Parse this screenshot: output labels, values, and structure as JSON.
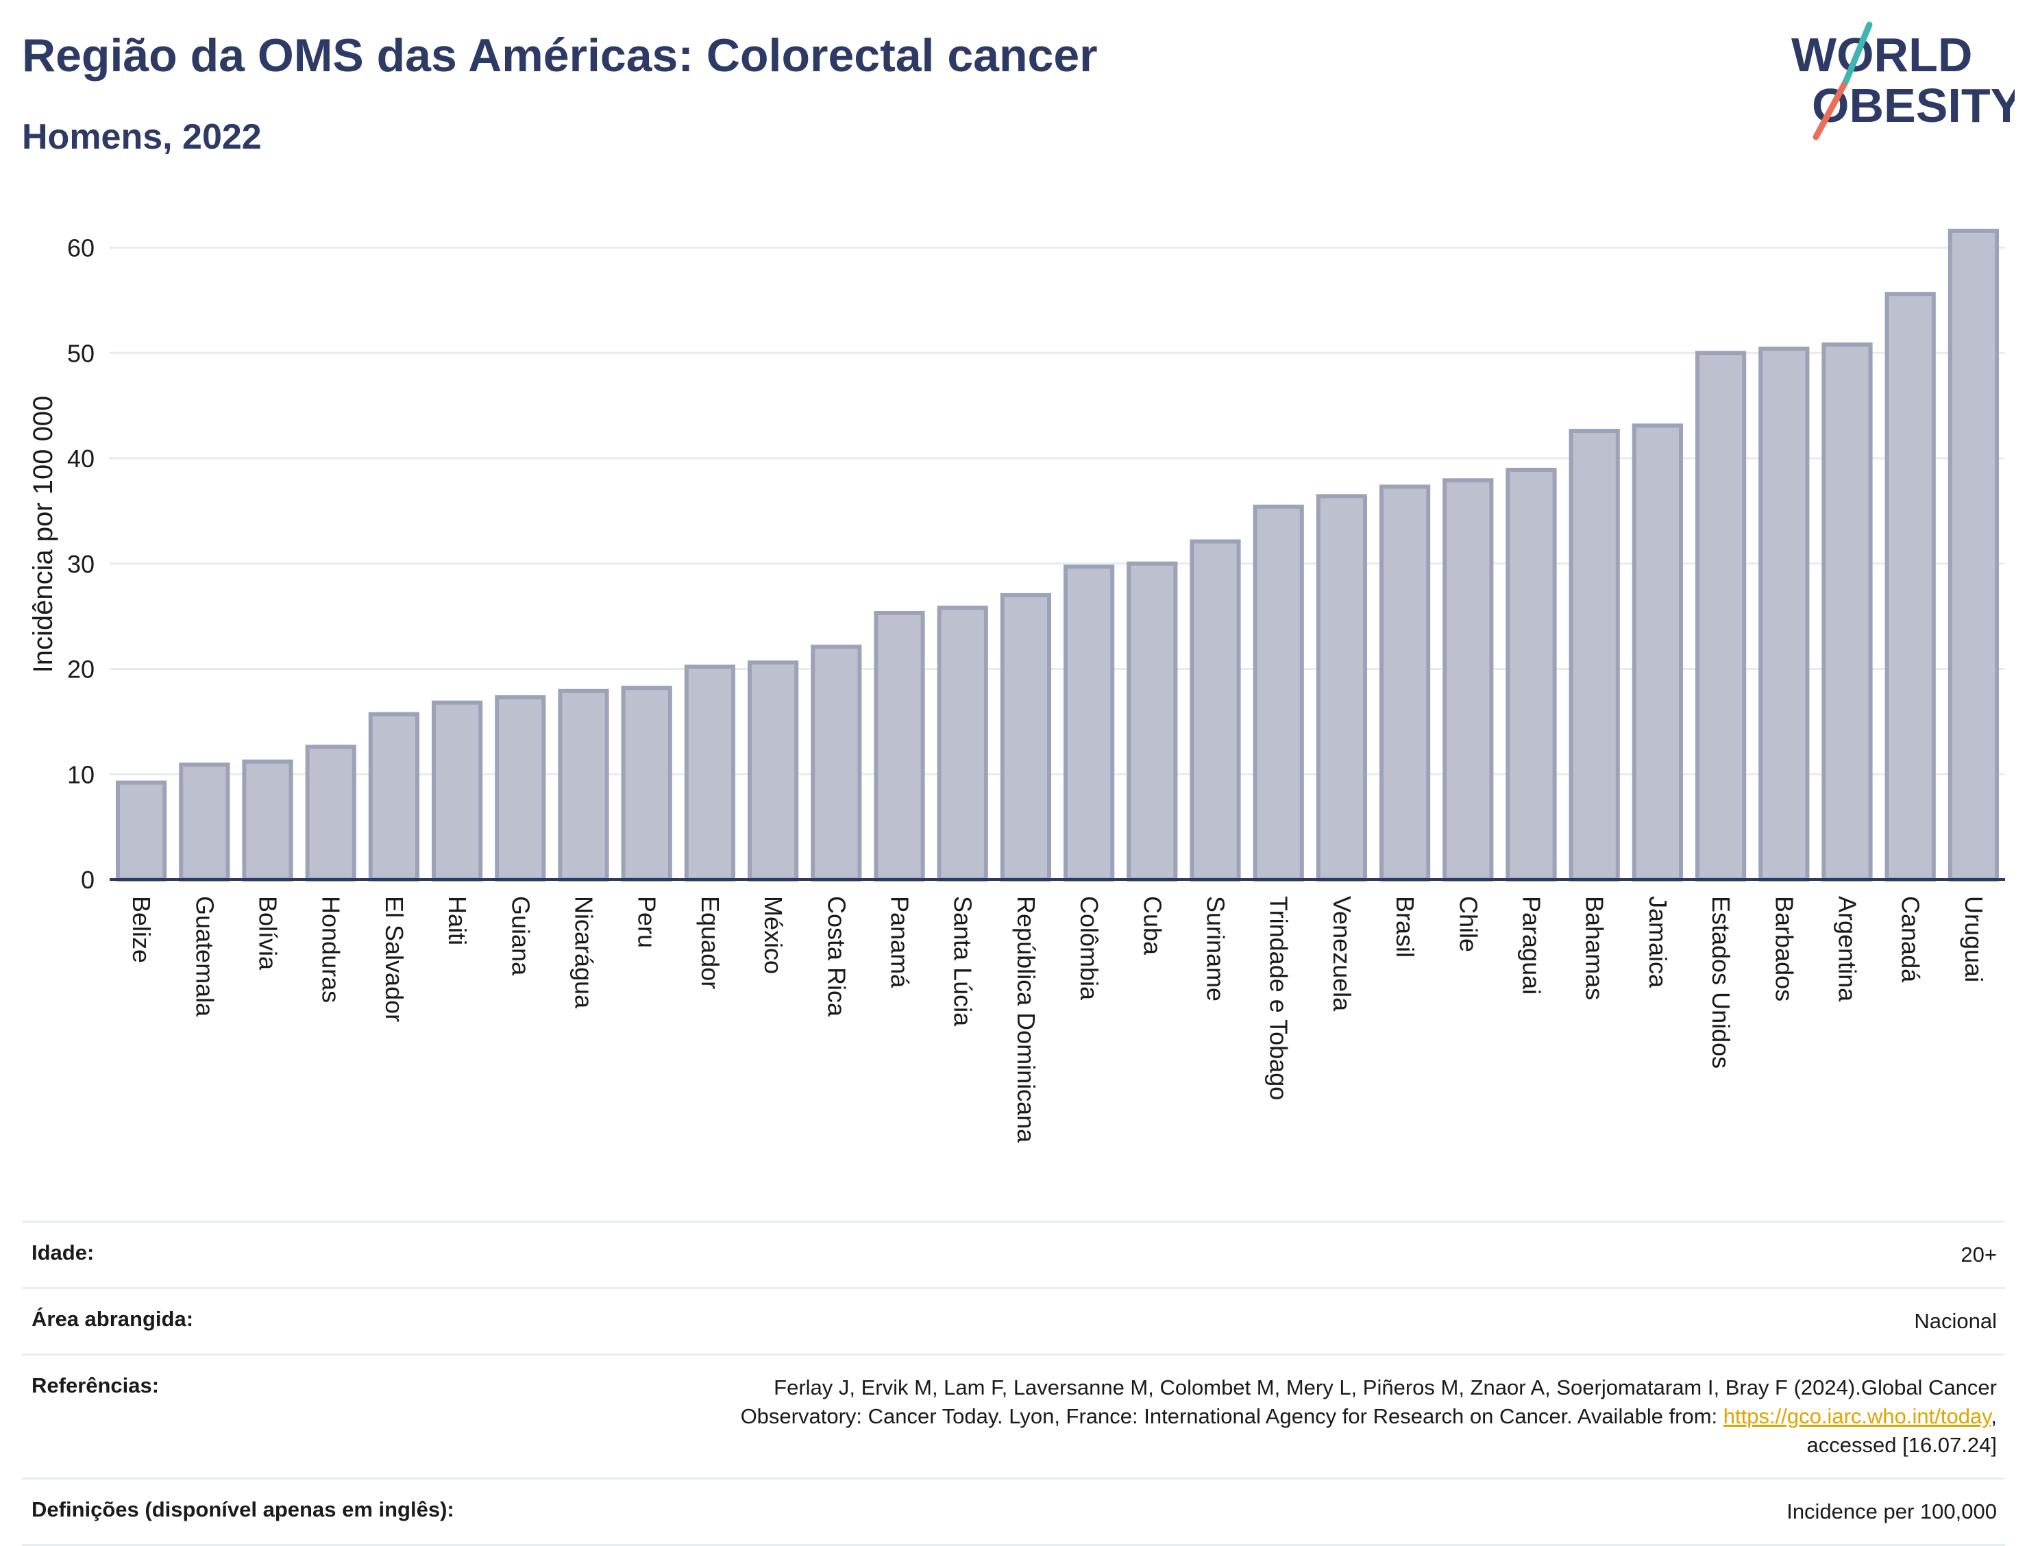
{
  "header": {
    "title": "Região da OMS das Américas: Colorectal cancer",
    "subtitle": "Homens, 2022",
    "logo_line1": "WORLD",
    "logo_line2": "OBESITY"
  },
  "chart_data": {
    "type": "bar",
    "ylabel": "Incidência por 100 000",
    "xlabel": "",
    "ylim": [
      0,
      64
    ],
    "yticks": [
      0,
      10,
      20,
      30,
      40,
      50,
      60
    ],
    "grid": true,
    "categories": [
      "Belize",
      "Guatemala",
      "Bolívia",
      "Honduras",
      "El Salvador",
      "Haiti",
      "Guiana",
      "Nicarágua",
      "Peru",
      "Equador",
      "México",
      "Costa Rica",
      "Panamá",
      "Santa Lúcia",
      "República Dominicana",
      "Colômbia",
      "Cuba",
      "Suriname",
      "Trindade e Tobago",
      "Venezuela",
      "Brasil",
      "Chile",
      "Paraguai",
      "Bahamas",
      "Jamaica",
      "Estados Unidos",
      "Barbados",
      "Argentina",
      "Canadá",
      "Uruguai"
    ],
    "values": [
      9.2,
      10.9,
      11.2,
      12.6,
      15.7,
      16.8,
      17.3,
      17.9,
      18.2,
      20.2,
      20.6,
      22.1,
      25.3,
      25.8,
      27.0,
      29.7,
      30.0,
      32.1,
      35.4,
      36.4,
      37.3,
      37.9,
      38.9,
      42.6,
      43.1,
      50.0,
      50.4,
      50.8,
      55.6,
      61.6
    ],
    "colors": {
      "bar_fill": "#bcc0cf",
      "bar_stroke": "#9da2b9",
      "axis": "#2d3a66",
      "grid": "#e6ebf1"
    }
  },
  "meta": {
    "age_label": "Idade:",
    "age_value": "20+",
    "area_label": "Área abrangida:",
    "area_value": "Nacional",
    "refs_label": "Referências:",
    "refs_line1": "Ferlay J, Ervik M, Lam F, Laversanne M, Colombet M, Mery L, Piñeros M, Znaor A, Soerjomataram I, Bray F (2024).Global Cancer",
    "refs_line2_pre": "Observatory: Cancer Today. Lyon, France: International Agency for Research on Cancer. Available from: ",
    "refs_link": "https://gco.iarc.who.int/today",
    "refs_line2_post": ",",
    "refs_line3": "accessed [16.07.24]",
    "defs_label": "Definições (disponível apenas em inglês):",
    "defs_value": "Incidence per 100,000"
  }
}
